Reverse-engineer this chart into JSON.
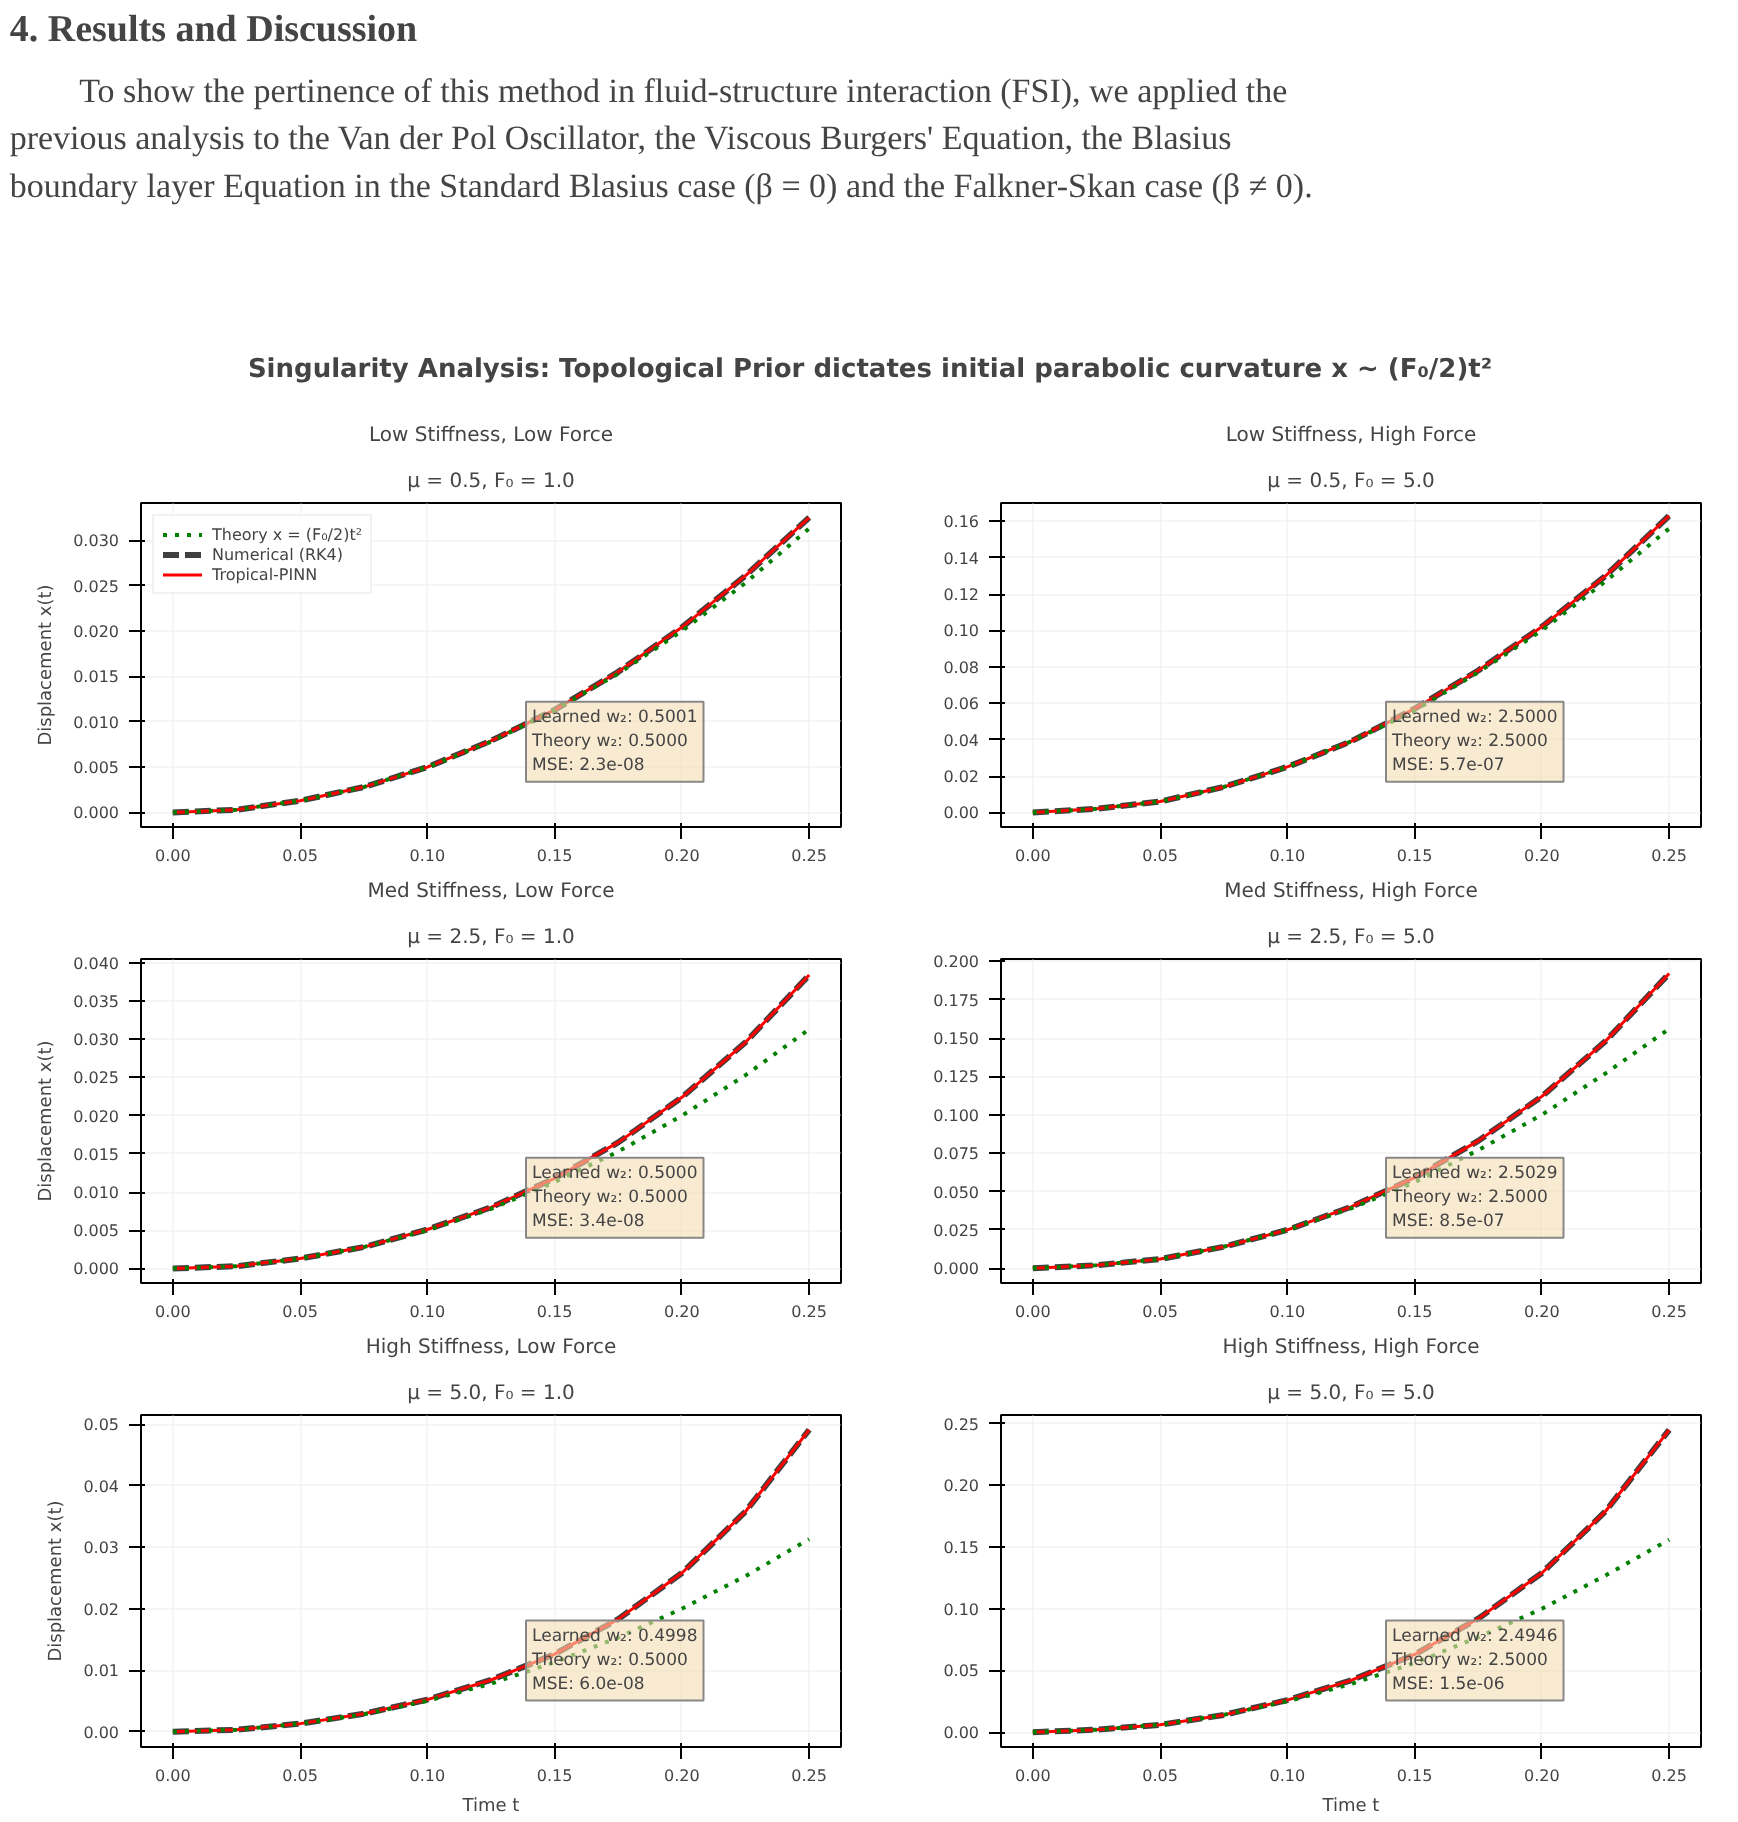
{
  "chart_data": [
    {
      "type": "other",
      "title": "4. Results and Discussion",
      "annotations": [
        "To show the pertinence of this method in fluid-structure interaction (FSI), we applied the previous analysis to the Van der Pol Oscillator, the Viscous Burgers' Equation, the Blasius boundary layer Equation in the Standard Blasius case (β = 0) and the Falkner-Skan case (β ≠ 0).",
        "Singularity Analysis: Topological Prior dictates initial parabolic curvature x ~ (F₀/2)t²"
      ]
    },
    {
      "type": "line",
      "title": "Low Stiffness, Low Force",
      "subtitle": "μ = 0.5, F₀ = 1.0",
      "ylabel": "Displacement x(t)",
      "x": [
        0,
        0.025,
        0.05,
        0.075,
        0.1,
        0.125,
        0.15,
        0.175,
        0.2,
        0.225,
        0.25
      ],
      "series": [
        {
          "name": "Theory x = (F₀/2)t²",
          "color": "#008000",
          "line_style": "dotted",
          "values": [
            0,
            0.0003,
            0.0013,
            0.0028,
            0.005,
            0.0078,
            0.0113,
            0.0153,
            0.02,
            0.0253,
            0.0313
          ]
        },
        {
          "name": "Numerical (RK4)",
          "color": "#404040",
          "line_style": "dashed",
          "values": [
            0,
            0.0003,
            0.0013,
            0.0028,
            0.005,
            0.0079,
            0.0113,
            0.0155,
            0.0204,
            0.0261,
            0.0325
          ]
        },
        {
          "name": "Tropical-PINN",
          "color": "#ff0000",
          "line_style": "solid",
          "values": [
            0,
            0.0003,
            0.0013,
            0.0028,
            0.005,
            0.0079,
            0.0113,
            0.0155,
            0.0204,
            0.0261,
            0.0325
          ]
        }
      ],
      "annotations": [
        "Learned w₂: 0.5001\nTheory w₂: 0.5000\nMSE: 2.3e-08"
      ],
      "xlim": [
        -0.0125,
        0.2625
      ],
      "xticks": [
        {
          "value": 0,
          "label": "0.00"
        },
        0.05,
        {
          "value": 0.1,
          "label": "0.10"
        },
        0.15,
        {
          "value": 0.2,
          "label": "0.20"
        },
        0.25
      ],
      "ylim": [
        -0.0016,
        0.0341
      ],
      "yticks": [
        {
          "value": 0,
          "label": "0.000"
        },
        0.005,
        {
          "value": 0.01,
          "label": "0.010"
        },
        0.015,
        {
          "value": 0.02,
          "label": "0.020"
        },
        0.025,
        {
          "value": 0.03,
          "label": "0.030"
        }
      ],
      "grid": true,
      "legend": "top left"
    },
    {
      "type": "line",
      "title": "Low Stiffness, High Force",
      "subtitle": "μ = 0.5, F₀ = 5.0",
      "x": [
        0,
        0.025,
        0.05,
        0.075,
        0.1,
        0.125,
        0.15,
        0.175,
        0.2,
        0.225,
        0.25
      ],
      "series": [
        {
          "color": "#008000",
          "line_style": "dotted",
          "values": [
            0,
            0.002,
            0.006,
            0.014,
            0.025,
            0.039,
            0.056,
            0.077,
            0.1,
            0.127,
            0.156
          ]
        },
        {
          "color": "#404040",
          "line_style": "dashed",
          "values": [
            0,
            0.002,
            0.006,
            0.014,
            0.025,
            0.039,
            0.057,
            0.078,
            0.102,
            0.13,
            0.163
          ]
        },
        {
          "color": "#ff0000",
          "line_style": "solid",
          "values": [
            0,
            0.002,
            0.006,
            0.014,
            0.025,
            0.039,
            0.057,
            0.078,
            0.102,
            0.13,
            0.163
          ]
        }
      ],
      "annotations": [
        "Learned w₂: 2.5000\nTheory w₂: 2.5000\nMSE: 5.7e-07"
      ],
      "xlim": [
        -0.0125,
        0.2625
      ],
      "xticks": [
        {
          "value": 0,
          "label": "0.00"
        },
        0.05,
        {
          "value": 0.1,
          "label": "0.10"
        },
        0.15,
        {
          "value": 0.2,
          "label": "0.20"
        },
        0.25
      ],
      "ylim": [
        -0.008,
        0.17
      ],
      "yticks": [
        {
          "value": 0,
          "label": "0.00"
        },
        0.02,
        0.04,
        0.06,
        0.08,
        {
          "value": 0.1,
          "label": "0.10"
        },
        0.12,
        0.14,
        0.16
      ],
      "grid": true
    },
    {
      "type": "line",
      "title": "Med Stiffness, Low Force",
      "subtitle": "μ = 2.5, F₀ = 1.0",
      "ylabel": "Displacement x(t)",
      "x": [
        0,
        0.025,
        0.05,
        0.075,
        0.1,
        0.125,
        0.15,
        0.175,
        0.2,
        0.225,
        0.25
      ],
      "series": [
        {
          "color": "#008000",
          "line_style": "dotted",
          "values": [
            0,
            0.0003,
            0.0013,
            0.0028,
            0.005,
            0.0078,
            0.0113,
            0.0153,
            0.02,
            0.0253,
            0.0313
          ]
        },
        {
          "color": "#404040",
          "line_style": "dashed",
          "values": [
            0,
            0.0003,
            0.0013,
            0.0028,
            0.0051,
            0.008,
            0.0118,
            0.0165,
            0.0224,
            0.0296,
            0.0384
          ]
        },
        {
          "color": "#ff0000",
          "line_style": "solid",
          "values": [
            0,
            0.0003,
            0.0013,
            0.0028,
            0.0051,
            0.008,
            0.0118,
            0.0165,
            0.0224,
            0.0296,
            0.0384
          ]
        }
      ],
      "annotations": [
        "Learned w₂: 0.5000\nTheory w₂: 0.5000\nMSE: 3.4e-08"
      ],
      "xlim": [
        -0.0125,
        0.2625
      ],
      "xticks": [
        {
          "value": 0,
          "label": "0.00"
        },
        0.05,
        {
          "value": 0.1,
          "label": "0.10"
        },
        0.15,
        {
          "value": 0.2,
          "label": "0.20"
        },
        0.25
      ],
      "ylim": [
        -0.0019,
        0.0405
      ],
      "yticks": [
        {
          "value": 0,
          "label": "0.000"
        },
        0.005,
        {
          "value": 0.01,
          "label": "0.010"
        },
        0.015,
        {
          "value": 0.02,
          "label": "0.020"
        },
        0.025,
        {
          "value": 0.03,
          "label": "0.030"
        },
        0.035,
        {
          "value": 0.04,
          "label": "0.040"
        }
      ],
      "grid": true
    },
    {
      "type": "line",
      "title": "Med Stiffness, High Force",
      "subtitle": "μ = 2.5, F₀ = 5.0",
      "x": [
        0,
        0.025,
        0.05,
        0.075,
        0.1,
        0.125,
        0.15,
        0.175,
        0.2,
        0.225,
        0.25
      ],
      "series": [
        {
          "color": "#008000",
          "line_style": "dotted",
          "values": [
            0,
            0.002,
            0.006,
            0.014,
            0.025,
            0.039,
            0.056,
            0.077,
            0.1,
            0.127,
            0.156
          ]
        },
        {
          "color": "#404040",
          "line_style": "dashed",
          "values": [
            0,
            0.002,
            0.006,
            0.014,
            0.025,
            0.04,
            0.059,
            0.083,
            0.112,
            0.148,
            0.192
          ]
        },
        {
          "color": "#ff0000",
          "line_style": "solid",
          "values": [
            0,
            0.002,
            0.006,
            0.014,
            0.025,
            0.04,
            0.059,
            0.083,
            0.112,
            0.148,
            0.192
          ]
        }
      ],
      "annotations": [
        "Learned w₂: 2.5029\nTheory w₂: 2.5000\nMSE: 8.5e-07"
      ],
      "xlim": [
        -0.0125,
        0.2625
      ],
      "xticks": [
        {
          "value": 0,
          "label": "0.00"
        },
        0.05,
        {
          "value": 0.1,
          "label": "0.10"
        },
        0.15,
        {
          "value": 0.2,
          "label": "0.20"
        },
        0.25
      ],
      "ylim": [
        -0.0096,
        0.2015
      ],
      "yticks": [
        {
          "value": 0,
          "label": "0.000"
        },
        0.025,
        {
          "value": 0.05,
          "label": "0.050"
        },
        0.075,
        {
          "value": 0.1,
          "label": "0.100"
        },
        0.125,
        {
          "value": 0.15,
          "label": "0.150"
        },
        0.175,
        {
          "value": 0.2,
          "label": "0.200"
        }
      ],
      "grid": true
    },
    {
      "type": "line",
      "title": "High Stiffness, Low Force",
      "subtitle": "μ = 5.0, F₀ = 1.0",
      "xlabel": "Time t",
      "ylabel": "Displacement x(t)",
      "x": [
        0,
        0.025,
        0.05,
        0.075,
        0.1,
        0.125,
        0.15,
        0.175,
        0.2,
        0.225,
        0.25
      ],
      "series": [
        {
          "color": "#008000",
          "line_style": "dotted",
          "values": [
            0,
            0.0003,
            0.0013,
            0.0028,
            0.005,
            0.0078,
            0.0113,
            0.0153,
            0.02,
            0.0253,
            0.0313
          ]
        },
        {
          "color": "#404040",
          "line_style": "dashed",
          "values": [
            0,
            0.0003,
            0.0013,
            0.0029,
            0.0052,
            0.0084,
            0.0126,
            0.0183,
            0.0258,
            0.0358,
            0.0491
          ]
        },
        {
          "color": "#ff0000",
          "line_style": "solid",
          "values": [
            0,
            0.0003,
            0.0013,
            0.0029,
            0.0052,
            0.0084,
            0.0126,
            0.0183,
            0.0258,
            0.0358,
            0.0491
          ]
        }
      ],
      "annotations": [
        "Learned w₂: 0.4998\nTheory w₂: 0.5000\nMSE: 6.0e-08"
      ],
      "xlim": [
        -0.0125,
        0.2625
      ],
      "xticks": [
        {
          "value": 0,
          "label": "0.00"
        },
        0.05,
        {
          "value": 0.1,
          "label": "0.10"
        },
        0.15,
        {
          "value": 0.2,
          "label": "0.20"
        },
        0.25
      ],
      "ylim": [
        -0.0025,
        0.0515
      ],
      "yticks": [
        {
          "value": 0,
          "label": "0.00"
        },
        0.01,
        0.02,
        0.03,
        0.04,
        0.05
      ],
      "grid": true
    },
    {
      "type": "line",
      "title": "High Stiffness, High Force",
      "subtitle": "μ = 5.0, F₀ = 5.0",
      "xlabel": "Time t",
      "x": [
        0,
        0.025,
        0.05,
        0.075,
        0.1,
        0.125,
        0.15,
        0.175,
        0.2,
        0.225,
        0.25
      ],
      "series": [
        {
          "color": "#008000",
          "line_style": "dotted",
          "values": [
            0,
            0.002,
            0.006,
            0.014,
            0.025,
            0.039,
            0.056,
            0.077,
            0.1,
            0.127,
            0.156
          ]
        },
        {
          "color": "#404040",
          "line_style": "dashed",
          "values": [
            0,
            0.002,
            0.006,
            0.014,
            0.026,
            0.042,
            0.063,
            0.092,
            0.129,
            0.179,
            0.245
          ]
        },
        {
          "color": "#ff0000",
          "line_style": "solid",
          "values": [
            0,
            0.002,
            0.006,
            0.014,
            0.026,
            0.042,
            0.063,
            0.092,
            0.129,
            0.179,
            0.245
          ]
        }
      ],
      "annotations": [
        "Learned w₂: 2.4946\nTheory w₂: 2.5000\nMSE: 1.5e-06"
      ],
      "xlim": [
        -0.0125,
        0.2625
      ],
      "xticks": [
        {
          "value": 0,
          "label": "0.00"
        },
        0.05,
        {
          "value": 0.1,
          "label": "0.10"
        },
        0.15,
        {
          "value": 0.2,
          "label": "0.20"
        },
        0.25
      ],
      "ylim": [
        -0.012,
        0.257
      ],
      "yticks": [
        {
          "value": 0,
          "label": "0.00"
        },
        0.05,
        {
          "value": 0.1,
          "label": "0.10"
        },
        0.15,
        {
          "value": 0.2,
          "label": "0.20"
        },
        0.25
      ],
      "grid": true
    }
  ]
}
